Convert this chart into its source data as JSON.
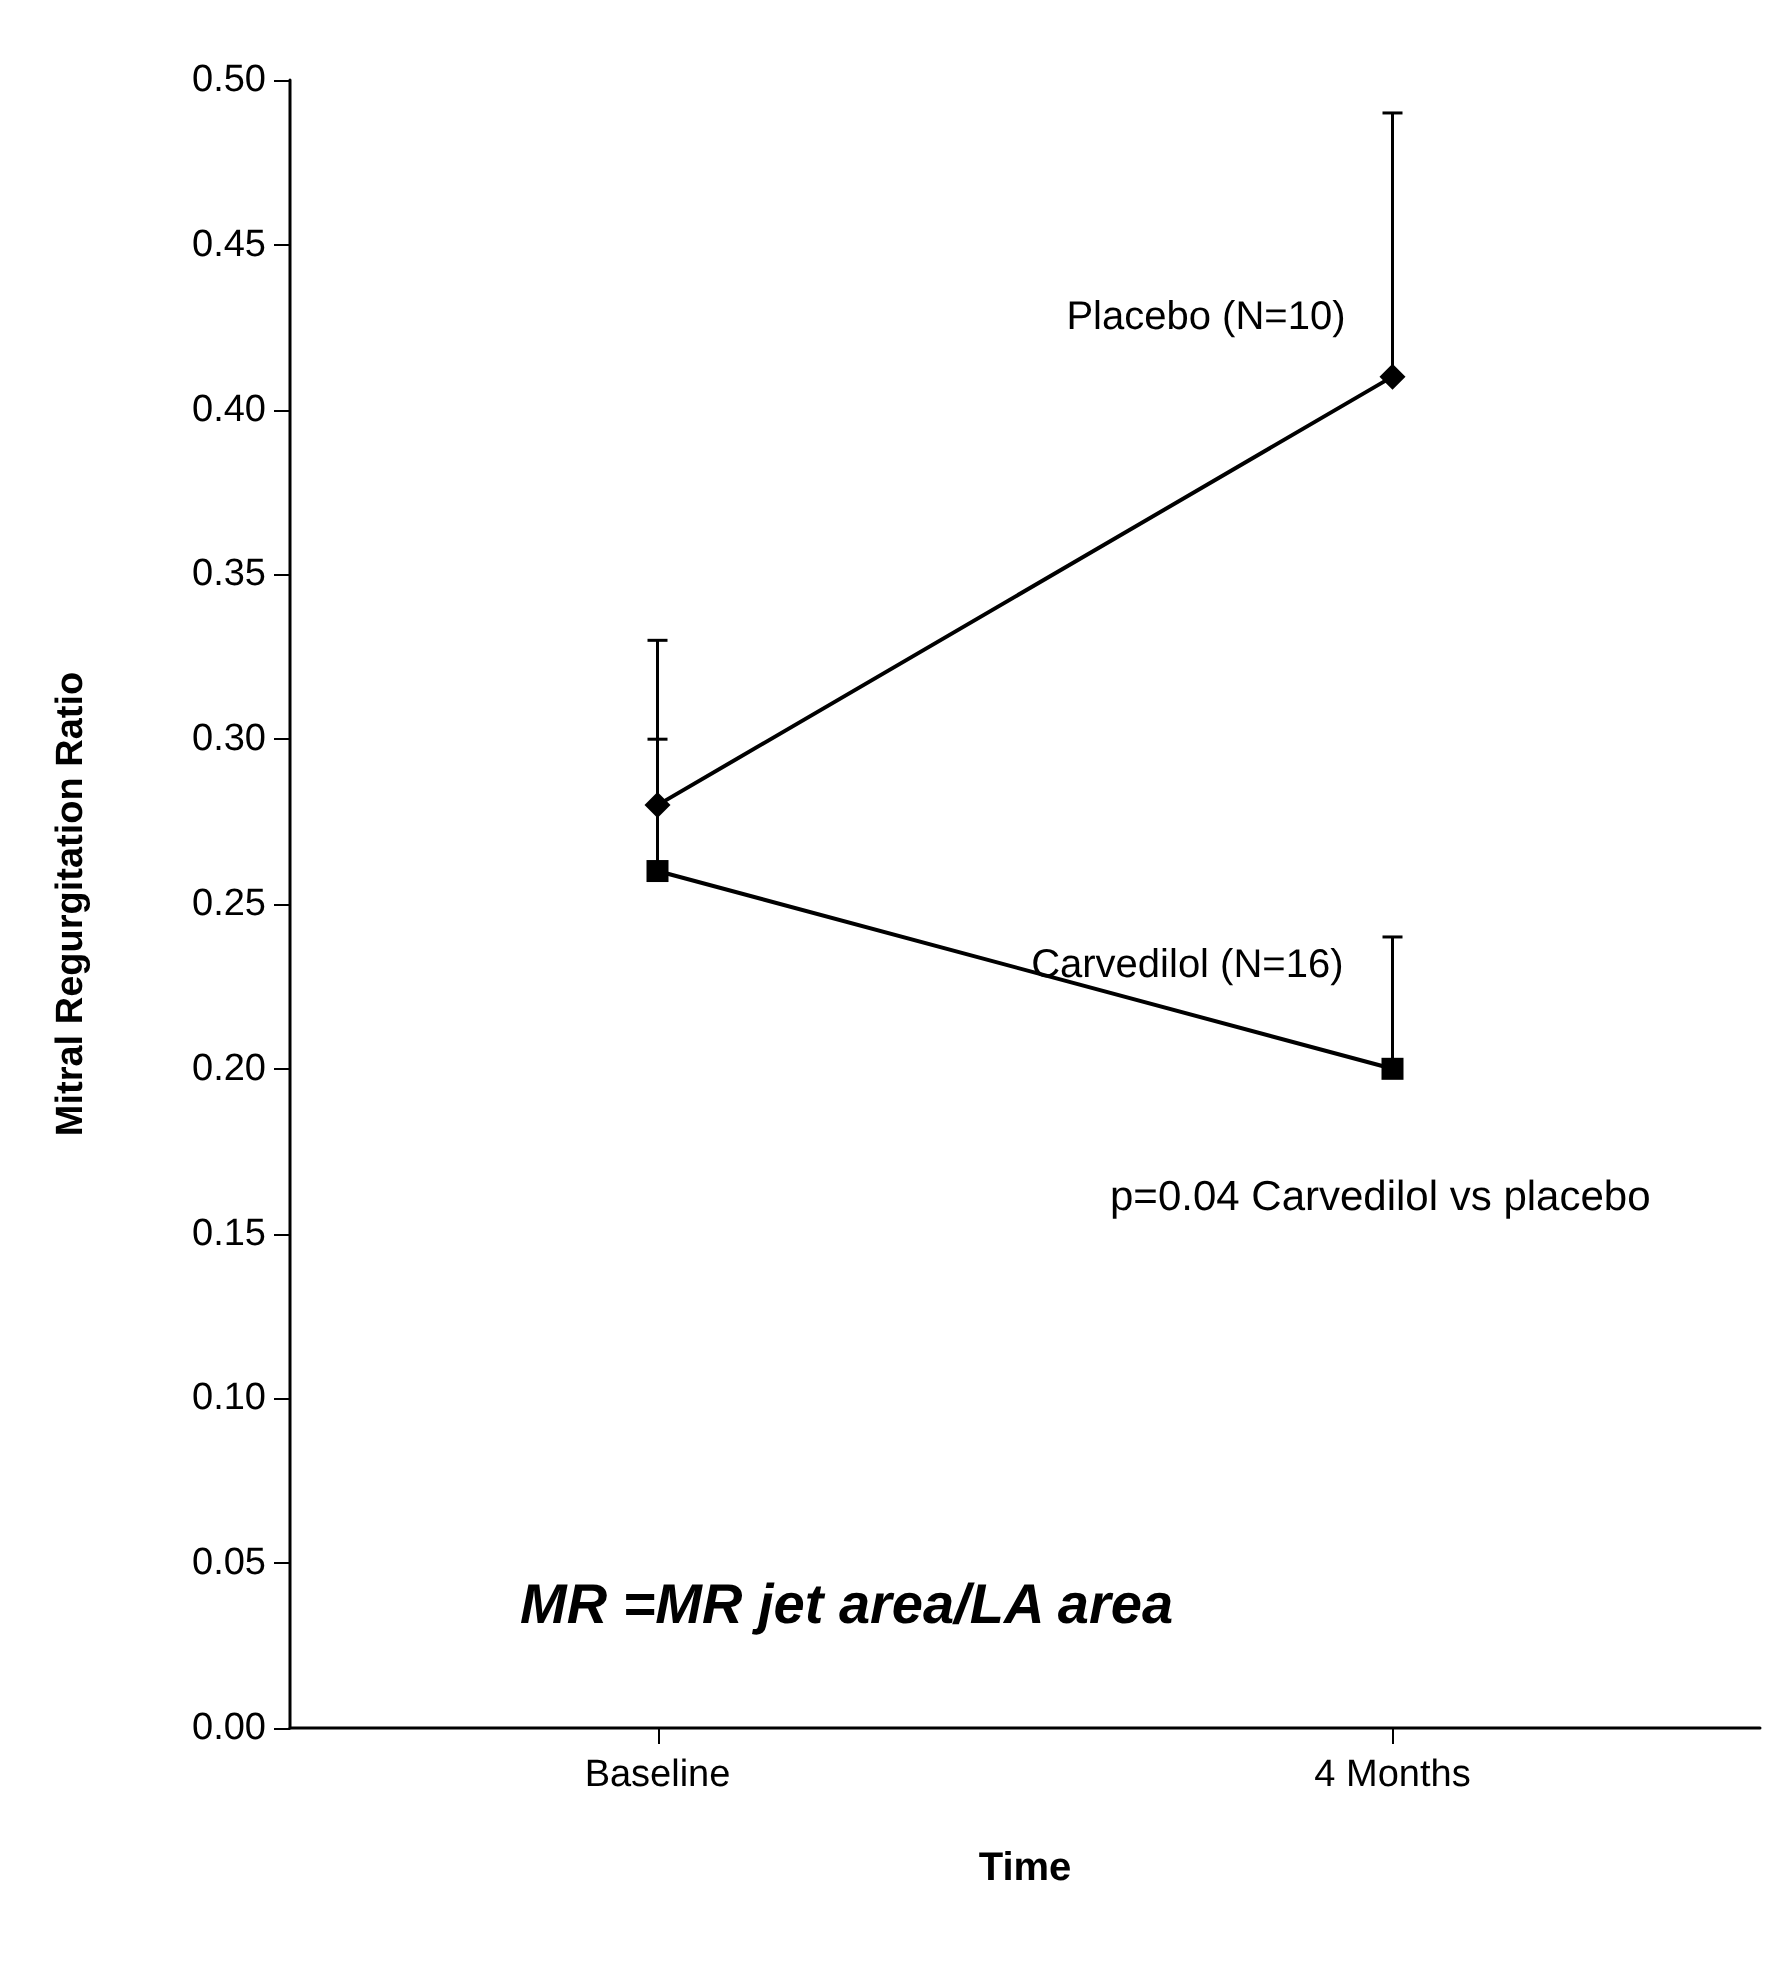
{
  "chart_data": {
    "type": "line",
    "xlabel": "Time",
    "ylabel": "Mitral Regurgitation Ratio",
    "categories": [
      "Baseline",
      "4 Months"
    ],
    "series": [
      {
        "name": "Placebo (N=10)",
        "color": "#000000",
        "marker": "diamond",
        "values": [
          0.28,
          0.41
        ],
        "errors": [
          [
            0.28,
            0.33
          ],
          [
            0.41,
            0.49
          ]
        ]
      },
      {
        "name": "Carvedilol (N=16)",
        "color": "#000000",
        "marker": "square",
        "values": [
          0.26,
          0.2
        ],
        "errors": [
          [
            0.26,
            0.3
          ],
          [
            0.2,
            0.24
          ]
        ]
      }
    ],
    "ylim": [
      0,
      0.5
    ],
    "yticks": [
      {
        "value": 0,
        "label": "0.00"
      },
      {
        "value": 0.05,
        "label": "0.05"
      },
      {
        "value": 0.1,
        "label": "0.10"
      },
      {
        "value": 0.15,
        "label": "0.15"
      },
      {
        "value": 0.2,
        "label": "0.20"
      },
      {
        "value": 0.25,
        "label": "0.25"
      },
      {
        "value": 0.3,
        "label": "0.30"
      },
      {
        "value": 0.35,
        "label": "0.35"
      },
      {
        "value": 0.4,
        "label": "0.40"
      },
      {
        "value": 0.45,
        "label": "0.45"
      },
      {
        "value": 0.5,
        "label": "0.50"
      }
    ],
    "grid": false,
    "legend": false,
    "line_style": "solid",
    "annotations": [
      "p=0.04 Carvedilol vs placebo",
      "MR =MR jet area/LA area"
    ]
  }
}
